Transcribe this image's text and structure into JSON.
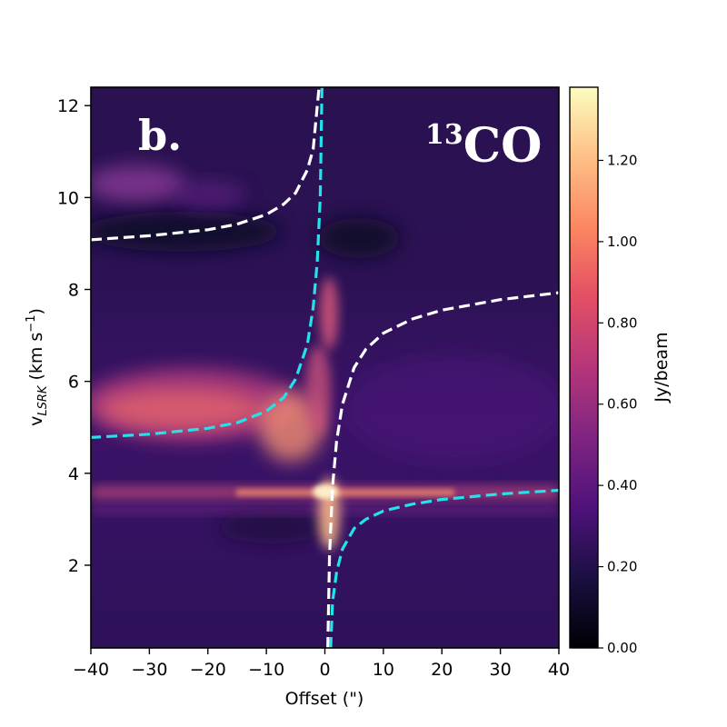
{
  "chart_data": {
    "type": "heatmap",
    "description_label": "b.",
    "species_label": {
      "superscript": "13",
      "main": "CO"
    },
    "xlabel": "Offset (\")",
    "ylabel": {
      "main": "v",
      "subscript": "LSRK",
      "suffix": " (km s",
      "exponent": "−1",
      "close": ")"
    },
    "xlim": [
      -40,
      40
    ],
    "ylim": [
      0.2,
      12.4
    ],
    "xticks": [
      -40,
      -30,
      -20,
      -10,
      0,
      10,
      20,
      30,
      40
    ],
    "xtick_labels": [
      "−40",
      "−30",
      "−20",
      "−10",
      "0",
      "10",
      "20",
      "30",
      "40"
    ],
    "yticks": [
      2,
      4,
      6,
      8,
      10,
      12
    ],
    "ytick_labels": [
      "2",
      "4",
      "6",
      "8",
      "10",
      "12"
    ],
    "colorbar": {
      "label": "Jy/beam",
      "colormap": "magma",
      "range": [
        0.0,
        1.38
      ],
      "ticks": [
        0.0,
        0.2,
        0.4,
        0.6,
        0.8,
        1.0,
        1.2
      ],
      "tick_labels": [
        "0.00",
        "0.20",
        "0.40",
        "0.60",
        "0.80",
        "1.00",
        "1.20"
      ]
    },
    "emission_features": [
      {
        "name": "blue-shifted lobe",
        "x_range": [
          -40,
          -3
        ],
        "v_center": 5.3,
        "peak": 0.95
      },
      {
        "name": "central spike",
        "x_range": [
          -2,
          3
        ],
        "v_range": [
          2.2,
          7.5
        ],
        "peak": 1.35
      },
      {
        "name": "horizontal band",
        "x_range": [
          -40,
          40
        ],
        "v_center": 3.55,
        "peak": 0.9
      },
      {
        "name": "upper faint emission",
        "x_range": [
          -40,
          -15
        ],
        "v_center": 10.1,
        "peak": 0.55
      }
    ],
    "series": [
      {
        "color": "#ffffff",
        "style": "dashed",
        "points": [
          [
            -40,
            9.08
          ],
          [
            -30,
            9.17
          ],
          [
            -20,
            9.3
          ],
          [
            -15,
            9.42
          ],
          [
            -10,
            9.63
          ],
          [
            -7,
            9.86
          ],
          [
            -5,
            10.1
          ],
          [
            -3,
            10.6
          ],
          [
            -2,
            11.05
          ],
          [
            -1,
            12.4
          ]
        ]
      },
      {
        "color": "#22e3ec",
        "style": "dashed",
        "points": [
          [
            -0.5,
            12.4
          ],
          [
            -0.8,
            10.0
          ],
          [
            -1.3,
            8.6
          ],
          [
            -2,
            7.6
          ],
          [
            -3,
            6.8
          ],
          [
            -5,
            6.05
          ],
          [
            -7,
            5.65
          ],
          [
            -10,
            5.35
          ],
          [
            -15,
            5.1
          ],
          [
            -20,
            4.98
          ],
          [
            -30,
            4.85
          ],
          [
            -40,
            4.78
          ]
        ]
      },
      {
        "color": "#ffffff",
        "style": "dashed",
        "points": [
          [
            0.5,
            0.2
          ],
          [
            0.8,
            2.2
          ],
          [
            1.3,
            3.7
          ],
          [
            2,
            4.7
          ],
          [
            3,
            5.5
          ],
          [
            5,
            6.3
          ],
          [
            7,
            6.7
          ],
          [
            10,
            7.05
          ],
          [
            15,
            7.36
          ],
          [
            20,
            7.55
          ],
          [
            30,
            7.78
          ],
          [
            40,
            7.93
          ]
        ]
      },
      {
        "color": "#22e3ec",
        "style": "dashed",
        "points": [
          [
            1,
            0.2
          ],
          [
            1.3,
            1.2
          ],
          [
            2,
            1.85
          ],
          [
            3,
            2.35
          ],
          [
            5,
            2.8
          ],
          [
            7,
            3.0
          ],
          [
            10,
            3.18
          ],
          [
            15,
            3.33
          ],
          [
            20,
            3.43
          ],
          [
            30,
            3.55
          ],
          [
            40,
            3.63
          ]
        ]
      }
    ]
  }
}
